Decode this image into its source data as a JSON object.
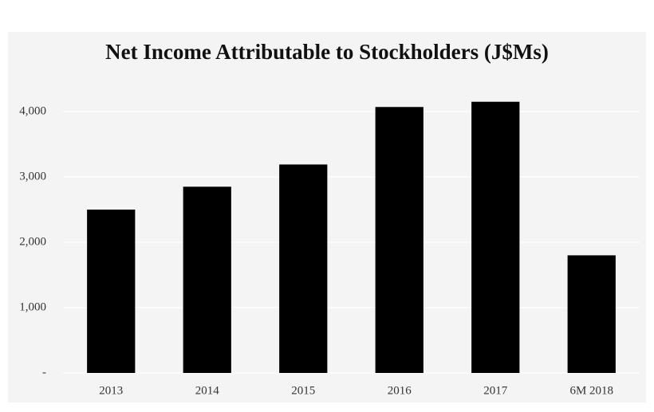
{
  "chart_data": {
    "type": "bar",
    "title": "Net Income Attributable to Stockholders (J$Ms)",
    "categories": [
      "2013",
      "2014",
      "2015",
      "2016",
      "2017",
      "6M 2018"
    ],
    "values": [
      2500,
      2850,
      3190,
      4070,
      4150,
      1800
    ],
    "color": "#000000",
    "ylim": [
      0,
      4500
    ],
    "yticks": [
      {
        "value": 0,
        "label": "-"
      },
      {
        "value": 1000,
        "label": "1,000"
      },
      {
        "value": 2000,
        "label": "2,000"
      },
      {
        "value": 3000,
        "label": "3,000"
      },
      {
        "value": 4000,
        "label": "4,000"
      }
    ],
    "grid": true
  }
}
